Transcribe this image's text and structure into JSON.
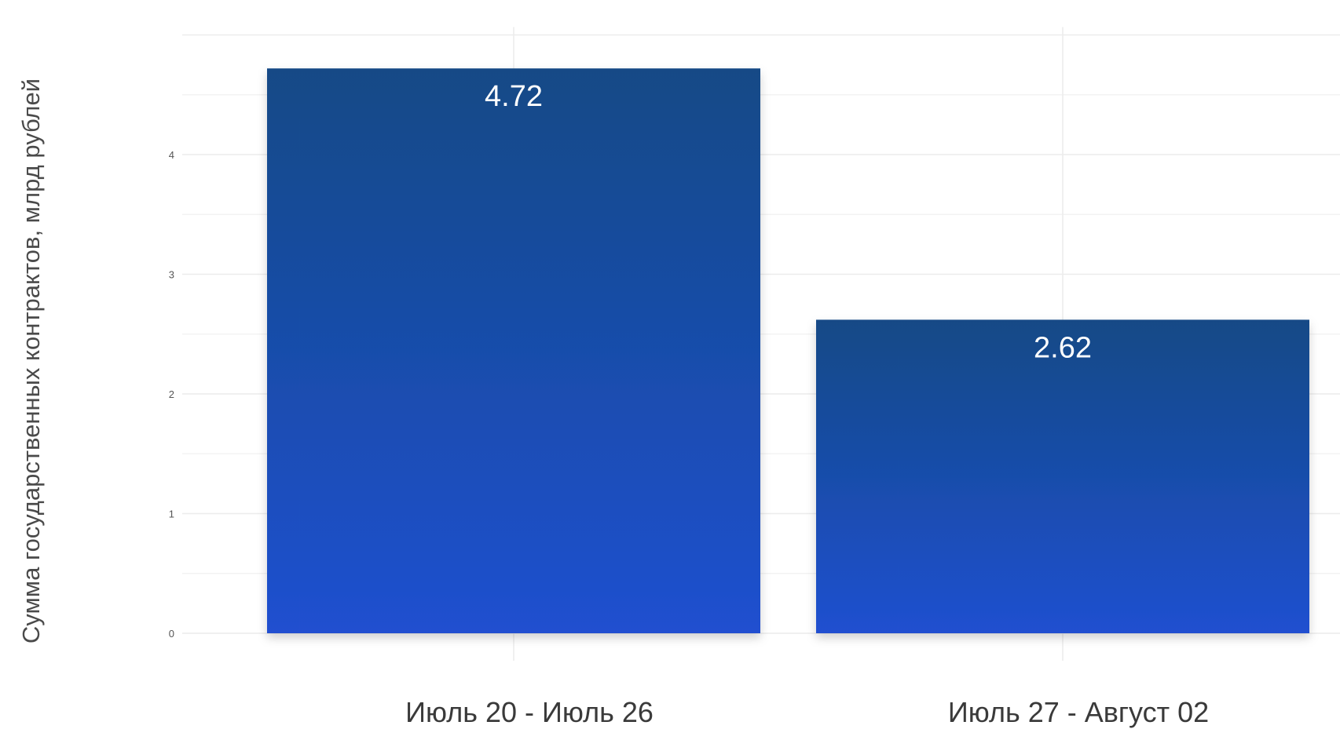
{
  "chart_data": {
    "type": "bar",
    "categories": [
      "Июль 20 - Июль 26",
      "Июль 27 - Август 02"
    ],
    "values": [
      4.72,
      2.62
    ],
    "value_labels": [
      "4.72",
      "2.62"
    ],
    "title": "",
    "xlabel": "",
    "ylabel": "Сумма государственных контрактов, млрд рублей",
    "ylim": [
      0,
      5.0
    ],
    "y_ticks": [
      "0",
      "1",
      "2",
      "3",
      "4"
    ],
    "grid": true,
    "legend": "none",
    "colors": {
      "bar_top": "#124a86",
      "bar_bottom": "#2050d0",
      "grid": "#ececec"
    }
  }
}
